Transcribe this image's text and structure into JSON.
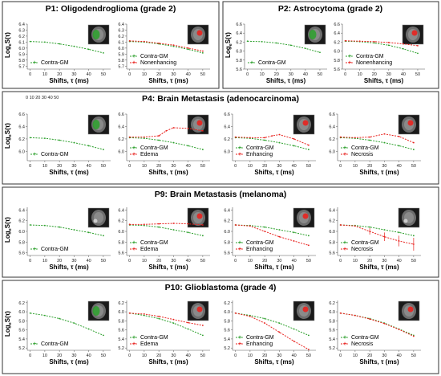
{
  "colors": {
    "contra": "#2ca02c",
    "tumor": "#e8221e",
    "frame": "#333333"
  },
  "stray_ticks": "0   10   20   30   40   50",
  "chart_data": [
    {
      "id": "p1",
      "title": "P1: Oligodendroglioma (grade 2)",
      "type": "line",
      "xlabel": "Shifts, τ (ms)",
      "ylabel": "Log",
      "ylim": [
        5.65,
        6.4
      ],
      "yticks": [
        5.7,
        5.8,
        5.9,
        6.0,
        6.1,
        6.2,
        6.3,
        6.4
      ],
      "xticks": [
        0,
        10,
        20,
        30,
        40,
        50
      ],
      "subplots": [
        {
          "series": [
            {
              "name": "Contra-GM",
              "color": "green",
              "x": [
                0,
                10,
                20,
                30,
                40,
                50
              ],
              "y": [
                6.11,
                6.1,
                6.07,
                6.03,
                5.98,
                5.92
              ]
            }
          ],
          "scan": "green"
        },
        {
          "series": [
            {
              "name": "Contra-GM",
              "color": "green",
              "x": [
                0,
                10,
                20,
                30,
                40,
                50
              ],
              "y": [
                6.11,
                6.1,
                6.07,
                6.03,
                5.98,
                5.92
              ]
            },
            {
              "name": "Nonenhancing",
              "color": "red",
              "x": [
                0,
                10,
                20,
                30,
                40,
                50
              ],
              "y": [
                6.12,
                6.11,
                6.08,
                6.05,
                6.0,
                5.95
              ]
            }
          ],
          "scan": "red"
        }
      ]
    },
    {
      "id": "p2",
      "title": "P2: Astrocytoma (grade 2)",
      "type": "line",
      "xlabel": "Shifts, τ (ms)",
      "ylabel": "Log",
      "ylim": [
        5.6,
        6.6
      ],
      "yticks": [
        5.6,
        5.8,
        6.0,
        6.2,
        6.4,
        6.6
      ],
      "xticks": [
        0,
        10,
        20,
        30,
        40,
        50
      ],
      "subplots": [
        {
          "series": [
            {
              "name": "Contra-GM",
              "color": "green",
              "x": [
                0,
                10,
                20,
                30,
                40,
                50
              ],
              "y": [
                6.22,
                6.21,
                6.18,
                6.13,
                6.06,
                5.97
              ]
            }
          ],
          "scan": "green"
        },
        {
          "series": [
            {
              "name": "Contra-GM",
              "color": "green",
              "x": [
                0,
                10,
                20,
                30,
                40,
                50
              ],
              "y": [
                6.22,
                6.21,
                6.18,
                6.13,
                6.05,
                5.95
              ]
            },
            {
              "name": "Nonenhancing",
              "color": "red",
              "x": [
                0,
                10,
                20,
                30,
                40,
                50
              ],
              "y": [
                6.23,
                6.22,
                6.21,
                6.19,
                6.16,
                6.12
              ]
            }
          ],
          "scan": "red"
        }
      ]
    },
    {
      "id": "p4",
      "title": "P4: Brain Metastasis (adenocarcinoma)",
      "type": "line",
      "xlabel": "Shifts, τ (ms)",
      "ylabel": "Log",
      "ylim": [
        5.85,
        6.6
      ],
      "yticks": [
        6.0,
        6.2,
        6.4,
        6.6
      ],
      "xticks": [
        0,
        10,
        20,
        30,
        40,
        50
      ],
      "subplots": [
        {
          "series": [
            {
              "name": "Contra-GM",
              "color": "green",
              "x": [
                0,
                10,
                20,
                30,
                40,
                50
              ],
              "y": [
                6.22,
                6.21,
                6.18,
                6.14,
                6.09,
                6.03
              ]
            }
          ],
          "scan": "green"
        },
        {
          "series": [
            {
              "name": "Contra-GM",
              "color": "green",
              "x": [
                0,
                10,
                20,
                30,
                40,
                50
              ],
              "y": [
                6.22,
                6.21,
                6.18,
                6.14,
                6.09,
                6.03
              ]
            },
            {
              "name": "Edema",
              "color": "red",
              "x": [
                0,
                10,
                20,
                25,
                30,
                40,
                50
              ],
              "y": [
                6.23,
                6.23,
                6.25,
                6.33,
                6.38,
                6.37,
                6.33
              ]
            }
          ],
          "scan": "red"
        },
        {
          "series": [
            {
              "name": "Contra-GM",
              "color": "green",
              "x": [
                0,
                10,
                20,
                30,
                40,
                50
              ],
              "y": [
                6.22,
                6.21,
                6.18,
                6.14,
                6.09,
                6.03
              ]
            },
            {
              "name": "Enhancing",
              "color": "red",
              "x": [
                0,
                10,
                20,
                25,
                30,
                40,
                50
              ],
              "y": [
                6.23,
                6.22,
                6.22,
                6.25,
                6.27,
                6.2,
                6.1
              ]
            }
          ],
          "scan": "red"
        },
        {
          "series": [
            {
              "name": "Contra-GM",
              "color": "green",
              "x": [
                0,
                10,
                20,
                30,
                40,
                50
              ],
              "y": [
                6.22,
                6.21,
                6.18,
                6.14,
                6.09,
                6.03
              ]
            },
            {
              "name": "Necrosis",
              "color": "red",
              "x": [
                0,
                10,
                20,
                30,
                40,
                50
              ],
              "y": [
                6.23,
                6.22,
                6.23,
                6.28,
                6.24,
                6.14
              ]
            }
          ],
          "scan": "red"
        }
      ]
    },
    {
      "id": "p9",
      "title": "P9: Brain Metastasis (melanoma)",
      "type": "line",
      "xlabel": "Shifts, τ (ms)",
      "ylabel": "Log",
      "ylim": [
        5.55,
        6.45
      ],
      "yticks": [
        5.6,
        5.8,
        6.0,
        6.2,
        6.4
      ],
      "xticks": [
        0,
        10,
        20,
        30,
        40,
        50
      ],
      "subplots": [
        {
          "series": [
            {
              "name": "Contra-GM",
              "color": "green",
              "x": [
                0,
                10,
                20,
                30,
                40,
                50
              ],
              "y": [
                6.12,
                6.11,
                6.08,
                6.03,
                5.98,
                5.92
              ]
            }
          ],
          "scan": "gray"
        },
        {
          "series": [
            {
              "name": "Contra-GM",
              "color": "green",
              "x": [
                0,
                10,
                20,
                30,
                40,
                50
              ],
              "y": [
                6.12,
                6.11,
                6.08,
                6.03,
                5.98,
                5.92
              ]
            },
            {
              "name": "Edema",
              "color": "red",
              "x": [
                0,
                10,
                20,
                30,
                40,
                50
              ],
              "y": [
                6.13,
                6.13,
                6.14,
                6.15,
                6.14,
                6.12
              ]
            }
          ],
          "scan": "red"
        },
        {
          "series": [
            {
              "name": "Contra-GM",
              "color": "green",
              "x": [
                0,
                10,
                20,
                30,
                40,
                50
              ],
              "y": [
                6.12,
                6.11,
                6.08,
                6.03,
                5.98,
                5.92
              ]
            },
            {
              "name": "Enhancing",
              "color": "red",
              "x": [
                0,
                10,
                20,
                30,
                40,
                50
              ],
              "y": [
                6.12,
                6.1,
                6.0,
                5.9,
                5.82,
                5.74
              ]
            }
          ],
          "scan": "red"
        },
        {
          "series": [
            {
              "name": "Contra-GM",
              "color": "green",
              "x": [
                0,
                10,
                20,
                30,
                40,
                50
              ],
              "y": [
                6.12,
                6.11,
                6.08,
                6.03,
                5.98,
                5.92
              ]
            },
            {
              "name": "Necrosis",
              "color": "red",
              "x": [
                0,
                10,
                20,
                30,
                40,
                50
              ],
              "y": [
                6.12,
                6.1,
                6.0,
                5.9,
                5.82,
                5.76
              ]
            }
          ],
          "scan": "gray",
          "errorbars": true
        }
      ]
    },
    {
      "id": "p10",
      "title": "P10: Glioblastoma (grade 4)",
      "type": "line",
      "xlabel": "Shifts, τ (ms)",
      "ylabel": "Log",
      "ylim": [
        5.15,
        6.25
      ],
      "yticks": [
        5.2,
        5.4,
        5.6,
        5.8,
        6.0,
        6.2
      ],
      "xticks": [
        0,
        10,
        20,
        30,
        40,
        50
      ],
      "subplots": [
        {
          "series": [
            {
              "name": "Contra-GM",
              "color": "green",
              "x": [
                0,
                10,
                20,
                30,
                40,
                50
              ],
              "y": [
                5.97,
                5.92,
                5.85,
                5.75,
                5.62,
                5.48
              ]
            }
          ],
          "scan": "green"
        },
        {
          "series": [
            {
              "name": "Contra-GM",
              "color": "green",
              "x": [
                0,
                10,
                20,
                30,
                40,
                50
              ],
              "y": [
                5.97,
                5.92,
                5.85,
                5.75,
                5.62,
                5.48
              ]
            },
            {
              "name": "Edema",
              "color": "red",
              "x": [
                0,
                10,
                20,
                30,
                40,
                50
              ],
              "y": [
                5.97,
                5.95,
                5.9,
                5.83,
                5.76,
                5.7
              ]
            }
          ],
          "scan": "red"
        },
        {
          "series": [
            {
              "name": "Contra-GM",
              "color": "green",
              "x": [
                0,
                10,
                20,
                30,
                40,
                50
              ],
              "y": [
                5.97,
                5.92,
                5.85,
                5.75,
                5.62,
                5.48
              ]
            },
            {
              "name": "Enhancing",
              "color": "red",
              "x": [
                0,
                10,
                20,
                30,
                40,
                50
              ],
              "y": [
                5.97,
                5.9,
                5.75,
                5.55,
                5.35,
                5.17
              ]
            }
          ],
          "scan": "red"
        },
        {
          "series": [
            {
              "name": "Contra-GM",
              "color": "green",
              "x": [
                0,
                10,
                20,
                30,
                40,
                50
              ],
              "y": [
                5.97,
                5.92,
                5.85,
                5.75,
                5.62,
                5.48
              ]
            },
            {
              "name": "Necrosis",
              "color": "red",
              "x": [
                0,
                10,
                20,
                30,
                40,
                50
              ],
              "y": [
                5.97,
                5.92,
                5.84,
                5.74,
                5.61,
                5.46
              ]
            }
          ],
          "scan": "red"
        }
      ]
    }
  ]
}
